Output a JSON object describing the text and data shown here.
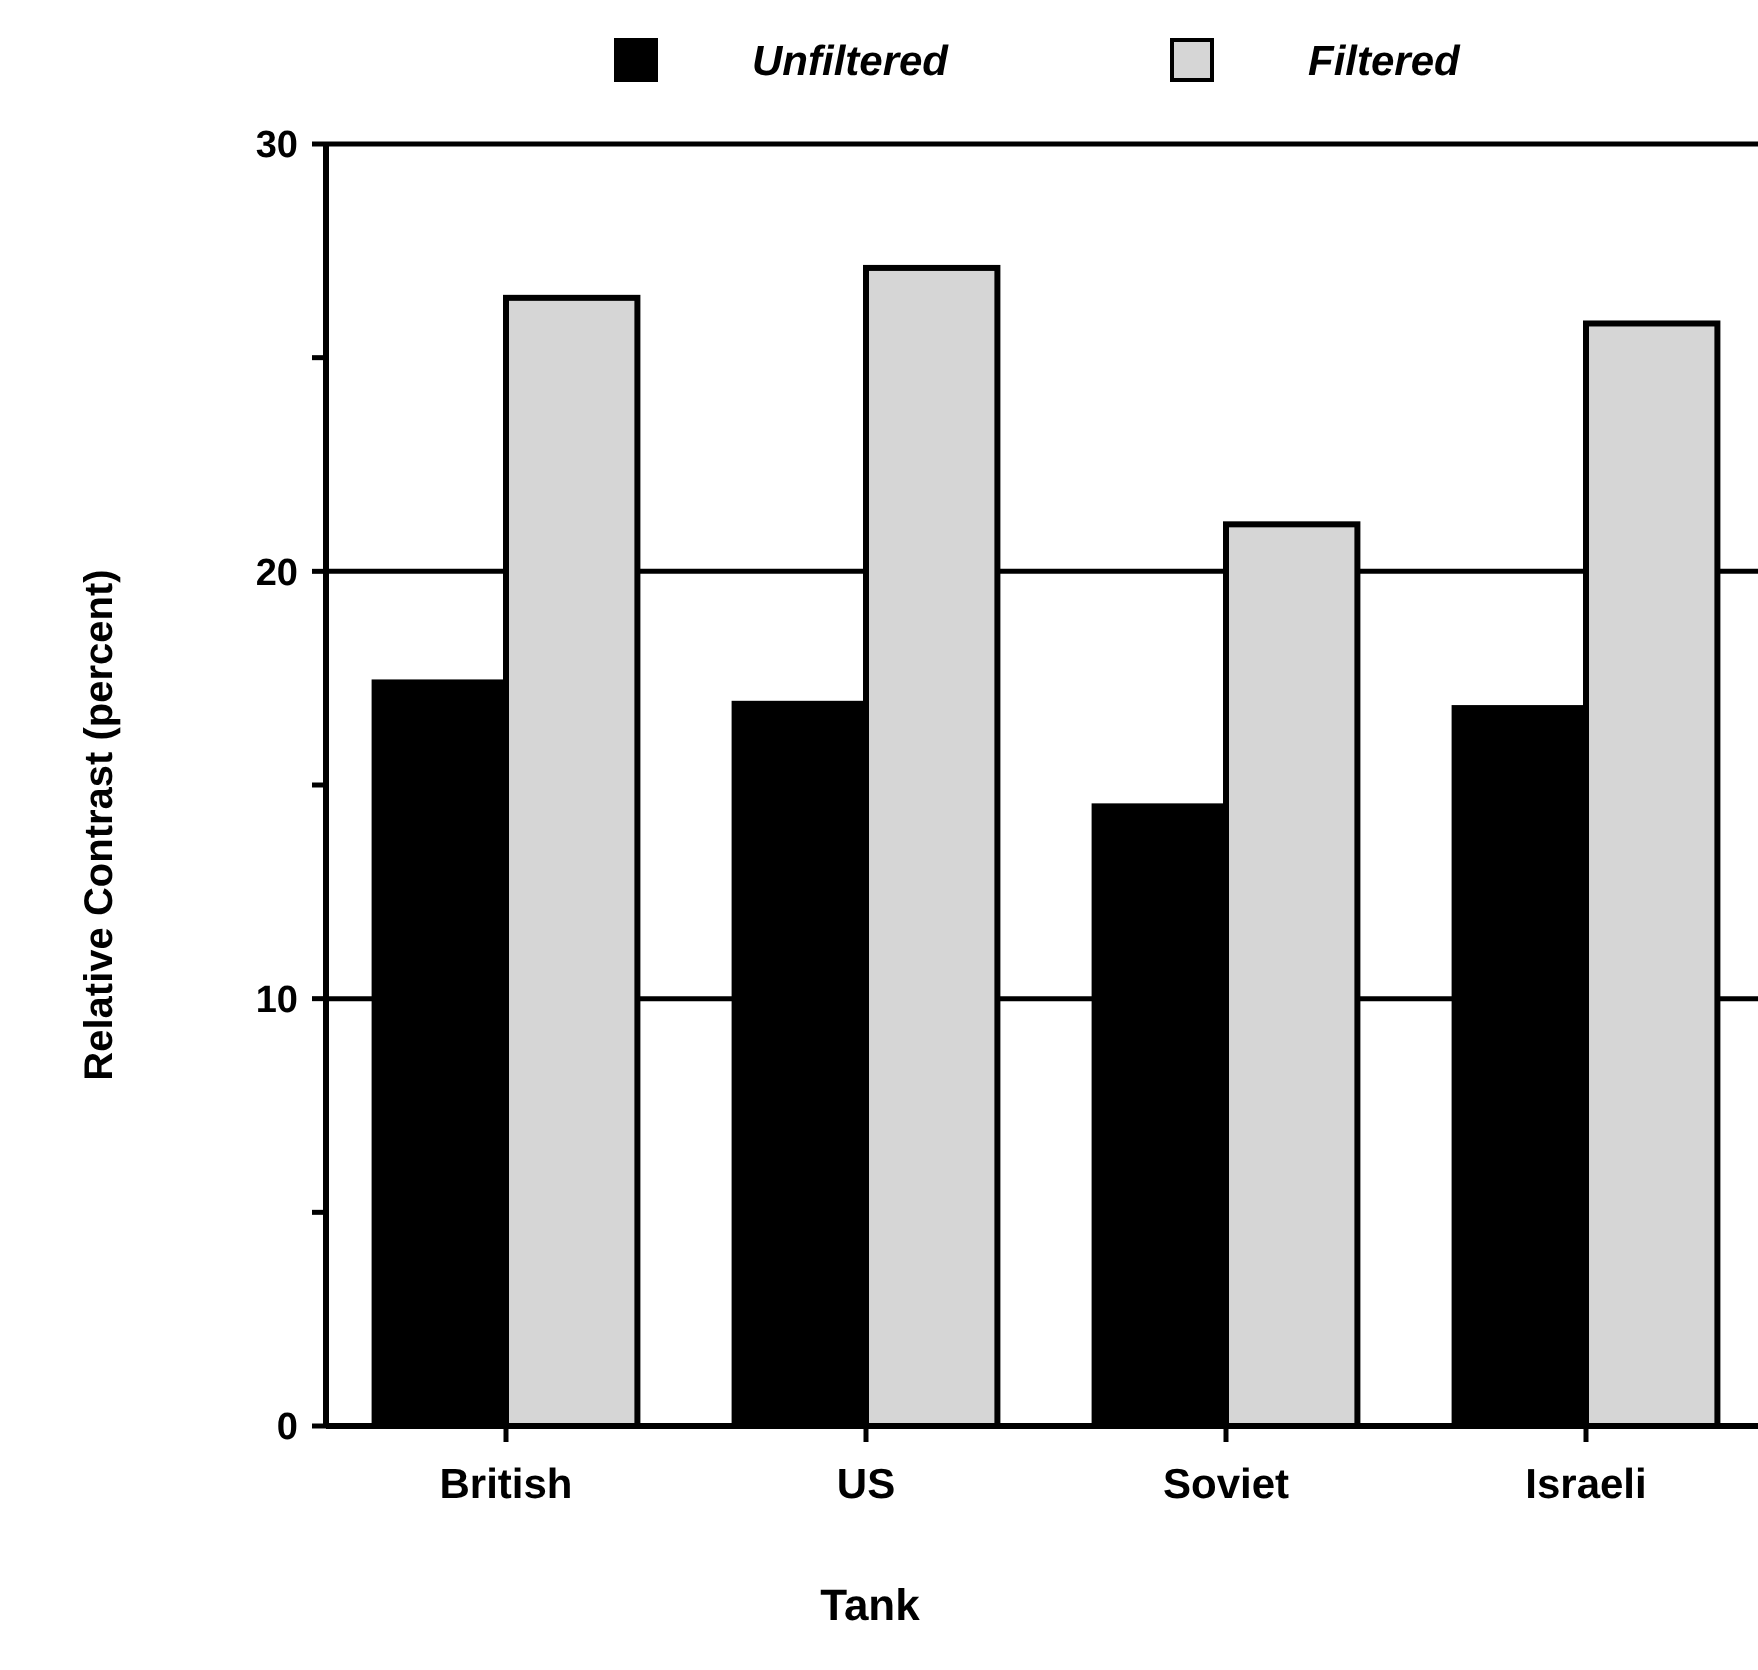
{
  "chart_data": {
    "type": "bar",
    "xlabel": "Tank",
    "ylabel": "Relative Contrast (percent)",
    "categories": [
      "British",
      "US",
      "Soviet",
      "Israeli"
    ],
    "series": [
      {
        "name": "Unfiltered",
        "color": "#000000",
        "values": [
          17.4,
          16.9,
          14.5,
          16.8
        ]
      },
      {
        "name": "Filtered",
        "color": "#d6d6d6",
        "values": [
          26.4,
          27.1,
          21.1,
          25.8
        ]
      }
    ],
    "ylim": [
      0,
      30
    ],
    "yticks": [
      0,
      {
        "value": 5,
        "label": null
      },
      10,
      {
        "value": 15,
        "label": null
      },
      20,
      {
        "value": 25,
        "label": null
      },
      30
    ],
    "grid": "y",
    "legend": "top"
  }
}
